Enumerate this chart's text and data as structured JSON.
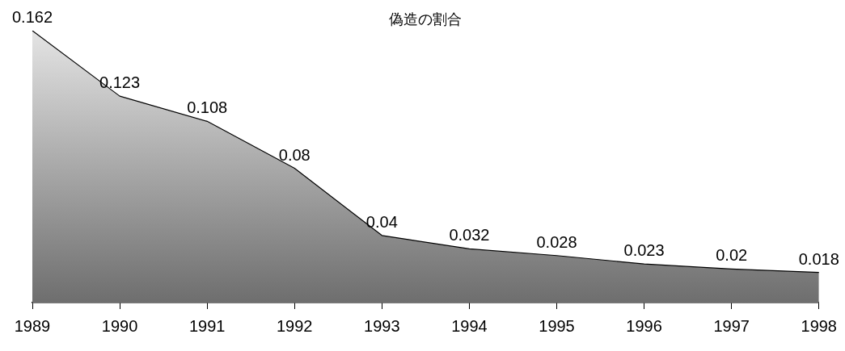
{
  "chart_data": {
    "type": "area",
    "title": "偽造の割合",
    "categories": [
      "1989",
      "1990",
      "1991",
      "1992",
      "1993",
      "1994",
      "1995",
      "1996",
      "1997",
      "1998"
    ],
    "series": [
      {
        "color": "#000000",
        "values": [
          0.162,
          0.123,
          0.108,
          0.08,
          0.04,
          0.032,
          0.028,
          0.023,
          0.02,
          0.018
        ]
      }
    ],
    "data_labels": true,
    "tick_labels": "x",
    "grid": false,
    "legend": false
  }
}
